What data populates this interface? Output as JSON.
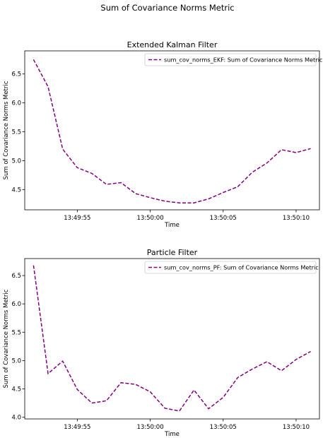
{
  "figure": {
    "suptitle": "Sum of Covariance Norms Metric"
  },
  "chart_data": [
    {
      "type": "line",
      "title": "Extended Kalman Filter",
      "xlabel": "Time",
      "ylabel": "Sum of Covariance Norms Metric",
      "x_ticks": [
        "13:49:55",
        "13:50:00",
        "13:50:05",
        "13:50:10"
      ],
      "x_tick_seconds": [
        55,
        60,
        65,
        70
      ],
      "y_ticks": [
        "4.5",
        "5.0",
        "5.5",
        "6.0",
        "6.5"
      ],
      "y_tick_values": [
        4.5,
        5.0,
        5.5,
        6.0,
        6.5
      ],
      "ylim": [
        4.15,
        6.9
      ],
      "xlim": [
        51.4,
        71.6
      ],
      "legend_position": "top-right",
      "grid": false,
      "series": [
        {
          "name": "sum_cov_norms_EKF: Sum of Covariance Norms Metric",
          "color": "#800080",
          "line_style": "dashed",
          "x": [
            52,
            53,
            54,
            55,
            56,
            57,
            58,
            59,
            60,
            61,
            62,
            63,
            64,
            65,
            66,
            67,
            68,
            69,
            70,
            71
          ],
          "y": [
            6.75,
            6.28,
            5.2,
            4.88,
            4.78,
            4.59,
            4.62,
            4.43,
            4.36,
            4.3,
            4.27,
            4.27,
            4.34,
            4.45,
            4.55,
            4.8,
            4.96,
            5.19,
            5.14,
            5.21
          ]
        }
      ]
    },
    {
      "type": "line",
      "title": "Particle Filter",
      "xlabel": "Time",
      "ylabel": "Sum of Covariance Norms Metric",
      "x_ticks": [
        "13:49:55",
        "13:50:00",
        "13:50:05",
        "13:50:10"
      ],
      "x_tick_seconds": [
        55,
        60,
        65,
        70
      ],
      "y_ticks": [
        "4.0",
        "4.5",
        "5.0",
        "5.5",
        "6.0",
        "6.5"
      ],
      "y_tick_values": [
        4.0,
        4.5,
        5.0,
        5.5,
        6.0,
        6.5
      ],
      "ylim": [
        3.97,
        6.8
      ],
      "xlim": [
        51.4,
        71.6
      ],
      "legend_position": "top-right",
      "grid": false,
      "series": [
        {
          "name": "sum_cov_norms_PF: Sum of Covariance Norms Metric",
          "color": "#800080",
          "line_style": "dashed",
          "x": [
            52,
            53,
            54,
            55,
            56,
            57,
            58,
            59,
            60,
            61,
            62,
            63,
            64,
            65,
            66,
            67,
            68,
            69,
            70,
            71
          ],
          "y": [
            6.68,
            4.77,
            4.99,
            4.49,
            4.25,
            4.29,
            4.61,
            4.58,
            4.45,
            4.16,
            4.11,
            4.48,
            4.15,
            4.35,
            4.7,
            4.85,
            4.98,
            4.82,
            5.02,
            5.16
          ]
        }
      ]
    }
  ]
}
